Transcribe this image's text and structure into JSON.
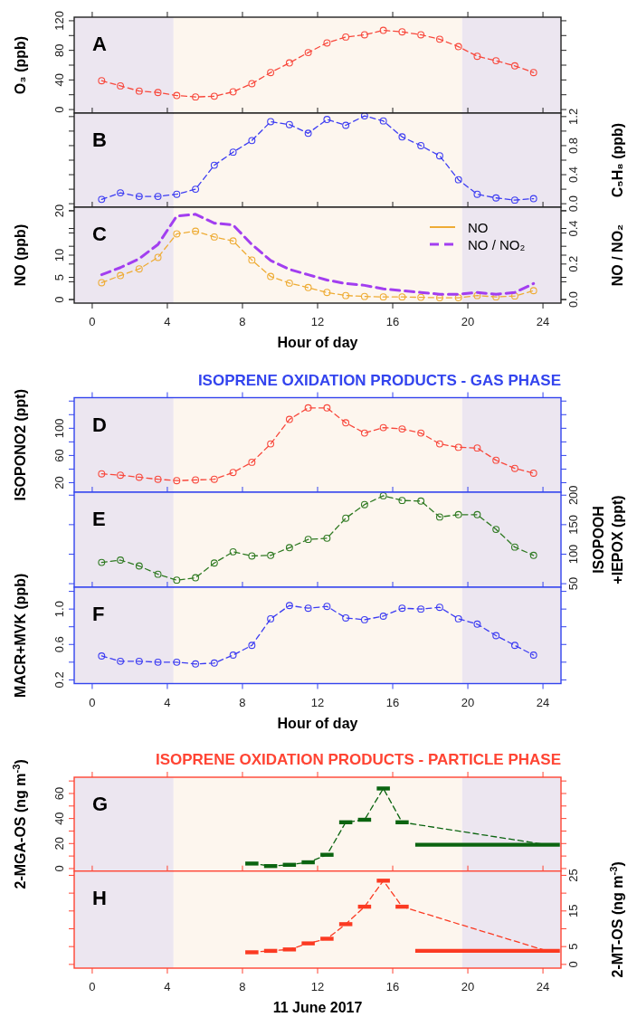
{
  "chart_data": [
    {
      "type": "line",
      "annotations": [
        "A"
      ],
      "ylabel": "O₃ (ppb)",
      "marker": "circle",
      "line_style": "dashed",
      "tick_labels": "y",
      "x": [
        0.5,
        1.5,
        2.5,
        3.5,
        4.5,
        5.5,
        6.5,
        7.5,
        8.5,
        9.5,
        10.5,
        11.5,
        12.5,
        13.5,
        14.5,
        15.5,
        16.5,
        17.5,
        18.5,
        19.5,
        20.5,
        21.5,
        22.5,
        23.5
      ],
      "series": [
        {
          "color": "#f8483c",
          "values": [
            39,
            32,
            25,
            23,
            19,
            17,
            18,
            24,
            35,
            50,
            63,
            77,
            90,
            98,
            101,
            107,
            105,
            101,
            95,
            85,
            72,
            66,
            59,
            50
          ]
        }
      ],
      "xlim": [
        -0.96,
        24.96
      ],
      "xticks": [
        0,
        4,
        8,
        12,
        16,
        20,
        24
      ],
      "ylim": [
        -4.8,
        124.8
      ],
      "yticks": [
        0,
        {
          "value": 20,
          "label": null
        },
        40,
        {
          "value": 60,
          "label": null
        },
        80,
        {
          "value": 100,
          "label": null
        },
        120
      ],
      "bands": [
        {
          "axis": "x",
          "from": -0.96,
          "to": 4.33,
          "color": "#ece6f0"
        },
        {
          "axis": "x",
          "from": 4.33,
          "to": 19.7,
          "color": "#fdf6ee"
        },
        {
          "axis": "x",
          "from": 19.7,
          "to": 24.96,
          "color": "#ece6f0"
        }
      ]
    },
    {
      "type": "line",
      "annotations": [
        "B"
      ],
      "y2label": "C₅H₈ (ppb)",
      "marker": "circle",
      "line_style": "dashed",
      "tick_labels": "y",
      "x": [
        0.5,
        1.5,
        2.5,
        3.5,
        4.5,
        5.5,
        6.5,
        7.5,
        8.5,
        9.5,
        10.5,
        11.5,
        12.5,
        13.5,
        14.5,
        15.5,
        16.5,
        17.5,
        18.5,
        19.5,
        20.5,
        21.5,
        22.5,
        23.5
      ],
      "series": [
        {
          "color": "#3c3cf2",
          "axis": "y2",
          "values": [
            0.06,
            0.15,
            0.1,
            0.1,
            0.13,
            0.2,
            0.53,
            0.71,
            0.87,
            1.13,
            1.09,
            0.97,
            1.16,
            1.08,
            1.21,
            1.14,
            0.92,
            0.8,
            0.66,
            0.33,
            0.13,
            0.08,
            0.05,
            0.07
          ]
        }
      ],
      "xlim": [
        -0.96,
        24.96
      ],
      "xticks": [
        0,
        4,
        8,
        12,
        16,
        20,
        24
      ],
      "y2lim": [
        -0.048,
        1.248
      ],
      "y2ticks": [
        {
          "value": 0,
          "label": "0.0"
        },
        {
          "value": 0.2,
          "label": null
        },
        0.4,
        {
          "value": 0.6,
          "label": null
        },
        0.8,
        {
          "value": 1,
          "label": null
        },
        1.2
      ],
      "bands": [
        {
          "axis": "x",
          "from": -0.96,
          "to": 4.33,
          "color": "#ece6f0"
        },
        {
          "axis": "x",
          "from": 4.33,
          "to": 19.7,
          "color": "#fdf6ee"
        },
        {
          "axis": "x",
          "from": 19.7,
          "to": 24.96,
          "color": "#ece6f0"
        }
      ]
    },
    {
      "type": "line",
      "annotations": [
        "C"
      ],
      "ylabel": "NO (ppb)",
      "y2label": "NO / NO₂",
      "xlabel": "Hour of day",
      "marker": "circle",
      "line_style": "dashed",
      "legend": "top right",
      "x": [
        0.5,
        1.5,
        2.5,
        3.5,
        4.5,
        5.5,
        6.5,
        7.5,
        8.5,
        9.5,
        10.5,
        11.5,
        12.5,
        13.5,
        14.5,
        15.5,
        16.5,
        17.5,
        18.5,
        19.5,
        20.5,
        21.5,
        22.5,
        23.5
      ],
      "series": [
        {
          "name": "NO",
          "color": "#eeac35",
          "values": [
            3.8,
            5.4,
            6.9,
            9.5,
            14.8,
            15.4,
            14.1,
            13.2,
            8.9,
            5.2,
            3.7,
            2.7,
            1.6,
            0.9,
            0.7,
            0.6,
            0.6,
            0.5,
            0.4,
            0.4,
            0.9,
            0.6,
            0.8,
            2.0
          ]
        },
        {
          "name": "NO / NO₂",
          "color": "#a23ef0",
          "axis": "y2",
          "marker": "none",
          "values": [
            0.14,
            0.18,
            0.23,
            0.31,
            0.47,
            0.48,
            0.43,
            0.42,
            0.31,
            0.22,
            0.17,
            0.14,
            0.11,
            0.09,
            0.08,
            0.06,
            0.05,
            0.04,
            0.03,
            0.03,
            0.04,
            0.03,
            0.04,
            0.09
          ]
        }
      ],
      "xlim": [
        -0.96,
        24.96
      ],
      "xticks": [
        0,
        4,
        8,
        12,
        16,
        20,
        24
      ],
      "ylim": [
        -0.8,
        20.8
      ],
      "yticks": [
        0,
        5,
        10,
        {
          "value": 15,
          "label": null
        },
        20
      ],
      "y2lim": [
        -0.02,
        0.52
      ],
      "y2ticks": [
        {
          "value": 0,
          "label": "0.0"
        },
        {
          "value": 0.1,
          "label": null
        },
        0.2,
        {
          "value": 0.3,
          "label": null
        },
        0.4,
        {
          "value": 0.5,
          "label": null
        }
      ],
      "bands": [
        {
          "axis": "x",
          "from": -0.96,
          "to": 4.33,
          "color": "#ece6f0"
        },
        {
          "axis": "x",
          "from": 4.33,
          "to": 19.7,
          "color": "#fdf6ee"
        },
        {
          "axis": "x",
          "from": 19.7,
          "to": 24.96,
          "color": "#ece6f0"
        }
      ]
    },
    {
      "type": "line",
      "title": "ISOPRENE OXIDATION PRODUCTS - GAS PHASE",
      "annotations": [
        "D"
      ],
      "ylabel": "ISOPONO2 (ppt)",
      "marker": "circle",
      "line_style": "dashed",
      "tick_labels": "y",
      "x": [
        0.5,
        1.5,
        2.5,
        3.5,
        4.5,
        5.5,
        6.5,
        7.5,
        8.5,
        9.5,
        10.5,
        11.5,
        12.5,
        13.5,
        14.5,
        15.5,
        16.5,
        17.5,
        18.5,
        19.5,
        20.5,
        21.5,
        22.5,
        23.5
      ],
      "series": [
        {
          "color": "#f8483c",
          "values": [
            33,
            31,
            28,
            25,
            23,
            24,
            25,
            35,
            50,
            77,
            113,
            130,
            130,
            108,
            93,
            101,
            99,
            93,
            77,
            72,
            71,
            53,
            41,
            34
          ]
        }
      ],
      "xlim": [
        -0.96,
        24.96
      ],
      "xticks": [
        0,
        4,
        8,
        12,
        16,
        20,
        24
      ],
      "ylim": [
        6,
        145
      ],
      "yticks": [
        20,
        {
          "value": 40,
          "label": null
        },
        60,
        {
          "value": 80,
          "label": null
        },
        100,
        {
          "value": 120,
          "label": null
        },
        {
          "value": 140,
          "label": null
        }
      ],
      "bands": [
        {
          "axis": "x",
          "from": -0.96,
          "to": 4.33,
          "color": "#ece6f0"
        },
        {
          "axis": "x",
          "from": 4.33,
          "to": 19.7,
          "color": "#fdf6ee"
        },
        {
          "axis": "x",
          "from": 19.7,
          "to": 24.96,
          "color": "#ece6f0"
        }
      ]
    },
    {
      "type": "line",
      "annotations": [
        "E"
      ],
      "y2label": "ISOPOOH\n+IEPOX (ppt)",
      "marker": "circle",
      "line_style": "dashed",
      "tick_labels": "y",
      "x": [
        0.5,
        1.5,
        2.5,
        3.5,
        4.5,
        5.5,
        6.5,
        7.5,
        8.5,
        9.5,
        10.5,
        11.5,
        12.5,
        13.5,
        14.5,
        15.5,
        16.5,
        17.5,
        18.5,
        19.5,
        20.5,
        21.5,
        22.5,
        23.5
      ],
      "series": [
        {
          "color": "#2f7a22",
          "axis": "y2",
          "values": [
            86,
            90,
            80,
            66,
            56,
            60,
            85,
            104,
            97,
            98,
            111,
            125,
            127,
            161,
            184,
            199,
            191,
            190,
            163,
            167,
            167,
            142,
            112,
            98
          ]
        }
      ],
      "xlim": [
        -0.96,
        24.96
      ],
      "xticks": [
        0,
        4,
        8,
        12,
        16,
        20,
        24
      ],
      "y2lim": [
        44,
        205
      ],
      "y2ticks": [
        50,
        100,
        150,
        200
      ],
      "bands": [
        {
          "axis": "x",
          "from": -0.96,
          "to": 4.33,
          "color": "#ece6f0"
        },
        {
          "axis": "x",
          "from": 4.33,
          "to": 19.7,
          "color": "#fdf6ee"
        },
        {
          "axis": "x",
          "from": 19.7,
          "to": 24.96,
          "color": "#ece6f0"
        }
      ]
    },
    {
      "type": "line",
      "annotations": [
        "F"
      ],
      "ylabel": "MACR+MVK (ppb)",
      "xlabel": "Hour of day",
      "marker": "circle",
      "line_style": "dashed",
      "x": [
        0.5,
        1.5,
        2.5,
        3.5,
        4.5,
        5.5,
        6.5,
        7.5,
        8.5,
        9.5,
        10.5,
        11.5,
        12.5,
        13.5,
        14.5,
        15.5,
        16.5,
        17.5,
        18.5,
        19.5,
        20.5,
        21.5,
        22.5,
        23.5
      ],
      "series": [
        {
          "color": "#3c3cf2",
          "values": [
            0.47,
            0.41,
            0.41,
            0.4,
            0.4,
            0.38,
            0.39,
            0.48,
            0.59,
            0.89,
            1.04,
            1.01,
            1.03,
            0.9,
            0.88,
            0.92,
            1.01,
            1.0,
            1.02,
            0.89,
            0.83,
            0.7,
            0.59,
            0.48
          ]
        }
      ],
      "xlim": [
        -0.96,
        24.96
      ],
      "xticks": [
        0,
        4,
        8,
        12,
        16,
        20,
        24
      ],
      "ylim": [
        0.158,
        1.247
      ],
      "yticks": [
        0.2,
        {
          "value": 0.4,
          "label": null
        },
        0.6,
        {
          "value": 0.8,
          "label": null
        },
        {
          "value": 1,
          "label": "1.0"
        },
        {
          "value": 1.2,
          "label": null
        }
      ],
      "bands": [
        {
          "axis": "x",
          "from": -0.96,
          "to": 4.33,
          "color": "#ece6f0"
        },
        {
          "axis": "x",
          "from": 4.33,
          "to": 19.7,
          "color": "#fdf6ee"
        },
        {
          "axis": "x",
          "from": 19.7,
          "to": 24.96,
          "color": "#ece6f0"
        }
      ]
    },
    {
      "type": "line",
      "title": "ISOPRENE OXIDATION PRODUCTS - PARTICLE PHASE",
      "annotations": [
        "G"
      ],
      "ylabel": "2-MGA-OS (ng m$^{-3}$)",
      "marker": "none",
      "line_style": "dashed",
      "tick_labels": "y",
      "series": [
        {
          "color": "#0b6410",
          "x": [
            8.5,
            9.5,
            10.5,
            11.5,
            12.5,
            13.5,
            14.5,
            15.5,
            16.5,
            24.2
          ],
          "values": [
            4,
            2,
            3,
            5,
            11,
            37,
            39,
            64,
            37,
            19
          ],
          "xerrors": [
            0.35,
            0.35,
            0.35,
            0.35,
            0.35,
            0.35,
            0.35,
            0.35,
            0.35,
            [
              17.2,
              24.9
            ]
          ]
        }
      ],
      "xlim": [
        -0.96,
        24.96
      ],
      "xticks": [
        0,
        4,
        8,
        12,
        16,
        20,
        24
      ],
      "ylim": [
        -2,
        73
      ],
      "yticks": [
        0,
        {
          "value": 10,
          "label": null
        },
        20,
        {
          "value": 30,
          "label": null
        },
        40,
        {
          "value": 50,
          "label": null
        },
        60,
        {
          "value": 70,
          "label": null
        }
      ],
      "bands": [
        {
          "axis": "x",
          "from": -0.96,
          "to": 4.33,
          "color": "#ece6f0"
        },
        {
          "axis": "x",
          "from": 4.33,
          "to": 19.7,
          "color": "#fdf6ee"
        },
        {
          "axis": "x",
          "from": 19.7,
          "to": 24.96,
          "color": "#ece6f0"
        }
      ]
    },
    {
      "type": "line",
      "annotations": [
        "H"
      ],
      "y2label": "2-MT-OS (ng m$^{-3}$)",
      "xlabel": "11 June 2017",
      "marker": "none",
      "line_style": "dashed",
      "series": [
        {
          "color": "#fb3a22",
          "axis": "y2",
          "x": [
            8.5,
            9.5,
            10.5,
            11.5,
            12.5,
            13.5,
            14.5,
            15.5,
            16.5,
            24.2
          ],
          "values": [
            3.4,
            3.8,
            4.2,
            5.9,
            7.2,
            11.3,
            16.2,
            23.5,
            16.2,
            3.8
          ],
          "xerrors": [
            0.35,
            0.35,
            0.35,
            0.35,
            0.35,
            0.35,
            0.35,
            0.35,
            0.35,
            [
              17.2,
              24.9
            ]
          ]
        }
      ],
      "xlim": [
        -0.96,
        24.96
      ],
      "xticks": [
        0,
        4,
        8,
        12,
        16,
        20,
        24
      ],
      "y2lim": [
        -1.05,
        26.2
      ],
      "y2ticks": [
        0,
        5,
        {
          "value": 10,
          "label": null
        },
        15,
        {
          "value": 20,
          "label": null
        },
        25
      ],
      "bands": [
        {
          "axis": "x",
          "from": -0.96,
          "to": 4.33,
          "color": "#ece6f0"
        },
        {
          "axis": "x",
          "from": 4.33,
          "to": 19.7,
          "color": "#fdf6ee"
        },
        {
          "axis": "x",
          "from": 19.7,
          "to": 24.96,
          "color": "#ece6f0"
        }
      ]
    }
  ]
}
